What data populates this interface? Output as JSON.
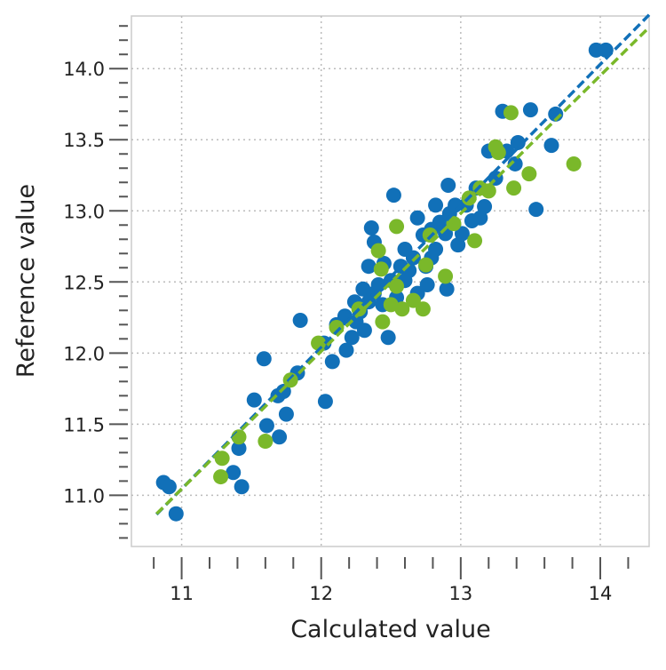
{
  "chart_data": {
    "type": "scatter",
    "title": "",
    "xlabel": "Calculated value",
    "ylabel": "Reference value",
    "xlim": [
      10.64,
      14.35
    ],
    "ylim": [
      10.64,
      14.37
    ],
    "xticks": [
      "11",
      "12",
      "13",
      "14"
    ],
    "yticks": [
      "11.0",
      "11.5",
      "12.0",
      "12.5",
      "13.0",
      "13.5",
      "14.0"
    ],
    "grid": true,
    "colors": {
      "blue": "#1170b8",
      "green": "#7ab82a"
    },
    "series": [
      {
        "color": "#1170b8",
        "points": [
          [
            10.87,
            11.09
          ],
          [
            10.91,
            11.06
          ],
          [
            10.96,
            10.87
          ],
          [
            11.37,
            11.16
          ],
          [
            11.41,
            11.33
          ],
          [
            11.43,
            11.06
          ],
          [
            11.52,
            11.67
          ],
          [
            11.61,
            11.49
          ],
          [
            11.59,
            11.96
          ],
          [
            11.69,
            11.7
          ],
          [
            11.73,
            11.73
          ],
          [
            11.7,
            11.41
          ],
          [
            11.75,
            11.57
          ],
          [
            11.85,
            12.23
          ],
          [
            11.83,
            11.86
          ],
          [
            12.03,
            11.66
          ],
          [
            12.08,
            11.94
          ],
          [
            12.02,
            12.07
          ],
          [
            12.11,
            12.2
          ],
          [
            12.18,
            12.02
          ],
          [
            12.22,
            12.11
          ],
          [
            12.25,
            12.22
          ],
          [
            12.28,
            12.29
          ],
          [
            12.3,
            12.45
          ],
          [
            12.31,
            12.16
          ],
          [
            12.34,
            12.36
          ],
          [
            12.38,
            12.42
          ],
          [
            12.41,
            12.48
          ],
          [
            12.44,
            12.34
          ],
          [
            12.48,
            12.11
          ],
          [
            12.52,
            13.11
          ],
          [
            12.54,
            12.39
          ],
          [
            12.57,
            12.61
          ],
          [
            12.6,
            12.73
          ],
          [
            12.63,
            12.58
          ],
          [
            12.66,
            12.67
          ],
          [
            12.69,
            12.42
          ],
          [
            12.73,
            12.83
          ],
          [
            12.75,
            12.61
          ],
          [
            12.76,
            12.48
          ],
          [
            12.79,
            12.87
          ],
          [
            12.82,
            12.73
          ],
          [
            12.85,
            12.92
          ],
          [
            12.89,
            12.84
          ],
          [
            12.92,
            12.98
          ],
          [
            12.91,
            13.18
          ],
          [
            12.98,
            12.76
          ],
          [
            12.9,
            12.45
          ],
          [
            13.01,
            12.84
          ],
          [
            13.04,
            13.04
          ],
          [
            13.08,
            12.93
          ],
          [
            13.11,
            13.16
          ],
          [
            13.17,
            13.03
          ],
          [
            13.2,
            13.42
          ],
          [
            13.3,
            13.7
          ],
          [
            13.33,
            13.42
          ],
          [
            13.39,
            13.33
          ],
          [
            13.41,
            13.48
          ],
          [
            13.5,
            13.71
          ],
          [
            13.54,
            13.01
          ],
          [
            13.65,
            13.46
          ],
          [
            13.68,
            13.68
          ],
          [
            13.97,
            14.13
          ],
          [
            14.04,
            14.13
          ],
          [
            12.38,
            12.78
          ],
          [
            12.45,
            12.63
          ],
          [
            12.36,
            12.88
          ],
          [
            12.5,
            12.51
          ],
          [
            12.24,
            12.36
          ],
          [
            12.17,
            12.26
          ],
          [
            12.6,
            12.51
          ],
          [
            12.69,
            12.95
          ],
          [
            12.82,
            13.04
          ],
          [
            12.96,
            13.04
          ],
          [
            13.14,
            12.95
          ],
          [
            13.25,
            13.23
          ],
          [
            12.79,
            12.67
          ],
          [
            12.34,
            12.61
          ]
        ],
        "fit": {
          "slope": 0.995,
          "intercept": 0.1
        }
      },
      {
        "color": "#7ab82a",
        "points": [
          [
            11.28,
            11.13
          ],
          [
            11.29,
            11.26
          ],
          [
            11.41,
            11.41
          ],
          [
            11.6,
            11.38
          ],
          [
            11.78,
            11.81
          ],
          [
            11.98,
            12.07
          ],
          [
            12.11,
            12.18
          ],
          [
            12.27,
            12.31
          ],
          [
            12.41,
            12.72
          ],
          [
            12.43,
            12.59
          ],
          [
            12.44,
            12.22
          ],
          [
            12.5,
            12.34
          ],
          [
            12.54,
            12.89
          ],
          [
            12.54,
            12.47
          ],
          [
            12.58,
            12.31
          ],
          [
            12.66,
            12.37
          ],
          [
            12.73,
            12.31
          ],
          [
            12.75,
            12.62
          ],
          [
            12.78,
            12.83
          ],
          [
            12.89,
            12.54
          ],
          [
            12.95,
            12.91
          ],
          [
            13.06,
            13.09
          ],
          [
            13.1,
            12.79
          ],
          [
            13.14,
            13.16
          ],
          [
            13.2,
            13.14
          ],
          [
            13.25,
            13.45
          ],
          [
            13.27,
            13.41
          ],
          [
            13.36,
            13.69
          ],
          [
            13.38,
            13.16
          ],
          [
            13.49,
            13.26
          ],
          [
            13.81,
            13.33
          ]
        ],
        "fit": {
          "slope": 0.969,
          "intercept": 0.385
        }
      }
    ]
  }
}
